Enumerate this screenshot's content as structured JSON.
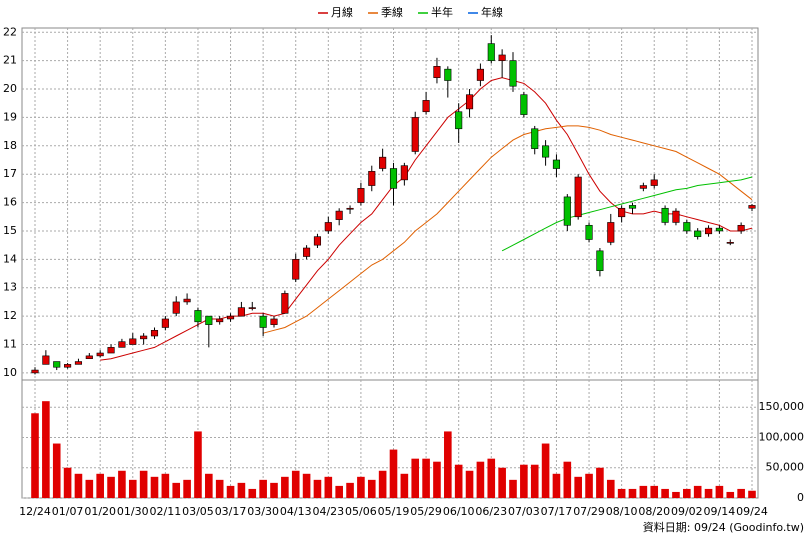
{
  "chart_data": {
    "type": "candlestick",
    "categories": [
      "12/24",
      null,
      null,
      "01/07",
      null,
      null,
      "01/20",
      null,
      null,
      "01/30",
      null,
      null,
      "02/11",
      null,
      null,
      "03/05",
      null,
      null,
      "03/17",
      null,
      null,
      "03/30",
      null,
      null,
      "04/13",
      null,
      null,
      "04/23",
      null,
      null,
      "05/06",
      null,
      null,
      "05/19",
      null,
      null,
      "05/29",
      null,
      null,
      "06/10",
      null,
      null,
      "06/23",
      null,
      null,
      "07/03",
      null,
      null,
      "07/17",
      null,
      null,
      "07/29",
      null,
      null,
      "08/10",
      null,
      null,
      "08/20",
      null,
      null,
      "09/02",
      null,
      null,
      "09/14",
      null,
      null,
      "09/24"
    ],
    "open": [
      10.0,
      10.3,
      10.4,
      10.2,
      10.3,
      10.5,
      10.6,
      10.7,
      10.9,
      11.0,
      11.2,
      11.3,
      11.6,
      12.1,
      12.5,
      12.2,
      12.0,
      11.8,
      11.9,
      12.0,
      12.3,
      12.0,
      11.7,
      12.1,
      13.3,
      14.1,
      14.5,
      15.0,
      15.4,
      15.8,
      16.0,
      16.6,
      17.2,
      17.2,
      16.8,
      17.8,
      19.2,
      20.4,
      20.7,
      19.2,
      19.3,
      20.3,
      21.6,
      21.0,
      21.0,
      19.8,
      18.6,
      18.0,
      17.5,
      16.2,
      15.5,
      15.2,
      14.3,
      14.6,
      15.5,
      15.9,
      16.5,
      16.6,
      15.8,
      15.3,
      15.3,
      15.0,
      14.9,
      15.1,
      14.6,
      15.0,
      15.8
    ],
    "high": [
      10.2,
      10.8,
      10.4,
      10.35,
      10.5,
      10.7,
      10.8,
      11.0,
      11.2,
      11.4,
      11.4,
      11.6,
      12.0,
      12.7,
      12.8,
      12.3,
      12.0,
      12.0,
      12.1,
      12.5,
      12.5,
      12.1,
      12.0,
      12.9,
      14.2,
      14.5,
      14.9,
      15.5,
      15.8,
      15.9,
      16.7,
      17.3,
      17.9,
      17.4,
      17.4,
      19.2,
      19.9,
      21.1,
      20.8,
      19.5,
      20.0,
      20.9,
      21.9,
      21.4,
      21.3,
      19.9,
      18.7,
      18.2,
      17.7,
      16.3,
      17.0,
      15.3,
      14.4,
      15.6,
      15.9,
      16.0,
      16.7,
      17.0,
      15.9,
      15.8,
      15.4,
      15.1,
      15.2,
      15.2,
      14.7,
      15.3,
      15.95
    ],
    "low": [
      9.95,
      10.3,
      10.1,
      10.15,
      10.3,
      10.5,
      10.55,
      10.7,
      10.9,
      11.0,
      11.0,
      11.2,
      11.5,
      12.0,
      12.4,
      11.6,
      10.9,
      11.7,
      11.8,
      12.0,
      12.2,
      11.3,
      11.6,
      12.1,
      13.2,
      14.0,
      14.4,
      14.9,
      15.2,
      15.6,
      15.9,
      16.4,
      17.1,
      15.9,
      16.6,
      17.7,
      19.1,
      20.2,
      19.7,
      18.1,
      19.0,
      20.1,
      20.9,
      20.4,
      19.9,
      19.0,
      17.7,
      17.3,
      16.9,
      15.0,
      15.4,
      14.6,
      13.4,
      14.5,
      15.3,
      15.6,
      16.4,
      16.5,
      15.2,
      15.2,
      14.9,
      14.7,
      14.8,
      14.9,
      14.5,
      14.9,
      15.7
    ],
    "close": [
      10.1,
      10.6,
      10.2,
      10.3,
      10.4,
      10.6,
      10.7,
      10.9,
      11.1,
      11.2,
      11.3,
      11.5,
      11.9,
      12.5,
      12.6,
      11.8,
      11.7,
      11.9,
      12.0,
      12.3,
      12.3,
      11.6,
      11.9,
      12.8,
      14.0,
      14.4,
      14.8,
      15.3,
      15.7,
      15.8,
      16.5,
      17.1,
      17.6,
      16.5,
      17.3,
      19.0,
      19.6,
      20.8,
      20.3,
      18.6,
      19.8,
      20.7,
      21.0,
      21.2,
      20.1,
      19.1,
      17.9,
      17.6,
      17.2,
      15.2,
      16.9,
      14.7,
      13.6,
      15.3,
      15.8,
      15.8,
      16.6,
      16.8,
      15.3,
      15.7,
      15.0,
      14.8,
      15.1,
      15.0,
      14.6,
      15.2,
      15.9
    ],
    "up_color": "#e00000",
    "down_color": "#00c000",
    "series": [
      {
        "name": "月線",
        "color": "#cc0000",
        "values": [
          null,
          null,
          null,
          null,
          null,
          null,
          10.45,
          10.5,
          10.6,
          10.7,
          10.8,
          10.9,
          11.1,
          11.3,
          11.5,
          11.7,
          11.9,
          11.9,
          12.0,
          12.0,
          12.1,
          12.1,
          12.0,
          12.1,
          12.6,
          13.1,
          13.6,
          14.0,
          14.5,
          14.9,
          15.3,
          15.6,
          16.1,
          16.6,
          16.9,
          17.5,
          18.0,
          18.5,
          19.0,
          19.3,
          19.6,
          20.0,
          20.3,
          20.4,
          20.3,
          20.2,
          19.9,
          19.5,
          18.9,
          18.4,
          17.7,
          17.0,
          16.4,
          16.0,
          15.7,
          15.6,
          15.6,
          15.7,
          15.6,
          15.6,
          15.5,
          15.4,
          15.3,
          15.2,
          15.0,
          15.0,
          15.1
        ]
      },
      {
        "name": "季線",
        "color": "#e06000",
        "values": [
          null,
          null,
          null,
          null,
          null,
          null,
          null,
          null,
          null,
          null,
          null,
          null,
          null,
          null,
          null,
          null,
          null,
          null,
          null,
          null,
          null,
          11.4,
          11.5,
          11.6,
          11.8,
          12.0,
          12.3,
          12.6,
          12.9,
          13.2,
          13.5,
          13.8,
          14.0,
          14.3,
          14.6,
          15.0,
          15.3,
          15.6,
          16.0,
          16.4,
          16.8,
          17.2,
          17.6,
          17.9,
          18.2,
          18.4,
          18.5,
          18.6,
          18.65,
          18.7,
          18.7,
          18.65,
          18.55,
          18.4,
          18.3,
          18.2,
          18.1,
          18.0,
          17.9,
          17.8,
          17.6,
          17.4,
          17.2,
          17.0,
          16.7,
          16.4,
          16.1
        ]
      },
      {
        "name": "半年",
        "color": "#00c000",
        "values": [
          null,
          null,
          null,
          null,
          null,
          null,
          null,
          null,
          null,
          null,
          null,
          null,
          null,
          null,
          null,
          null,
          null,
          null,
          null,
          null,
          null,
          null,
          null,
          null,
          null,
          null,
          null,
          null,
          null,
          null,
          null,
          null,
          null,
          null,
          null,
          null,
          null,
          null,
          null,
          null,
          null,
          null,
          null,
          14.3,
          14.5,
          14.7,
          14.9,
          15.1,
          15.3,
          15.45,
          15.55,
          15.65,
          15.75,
          15.85,
          15.95,
          16.05,
          16.15,
          16.25,
          16.35,
          16.45,
          16.5,
          16.6,
          16.65,
          16.7,
          16.75,
          16.8,
          16.9
        ]
      },
      {
        "name": "年線",
        "color": "#0060e0",
        "values": [
          null,
          null,
          null,
          null,
          null,
          null,
          null,
          null,
          null,
          null,
          null,
          null,
          null,
          null,
          null,
          null,
          null,
          null,
          null,
          null,
          null,
          null,
          null,
          null,
          null,
          null,
          null,
          null,
          null,
          null,
          null,
          null,
          null,
          null,
          null,
          null,
          null,
          null,
          null,
          null,
          null,
          null,
          null,
          null,
          null,
          null,
          null,
          null,
          null,
          null,
          null,
          null,
          null,
          null,
          null,
          null,
          null,
          null,
          null,
          null,
          null,
          null,
          null,
          null,
          null,
          null,
          null
        ]
      }
    ],
    "ylim": [
      9.75,
      22.15
    ],
    "yticks": [
      10,
      11,
      12,
      13,
      14,
      15,
      16,
      17,
      18,
      19,
      20,
      21,
      22
    ],
    "grid": true,
    "volume": {
      "color": "#e00000",
      "values": [
        140000,
        160000,
        90000,
        50000,
        40000,
        30000,
        40000,
        35000,
        45000,
        30000,
        45000,
        35000,
        40000,
        25000,
        30000,
        110000,
        40000,
        30000,
        20000,
        25000,
        15000,
        30000,
        25000,
        35000,
        45000,
        40000,
        30000,
        35000,
        20000,
        25000,
        35000,
        30000,
        45000,
        80000,
        40000,
        65000,
        65000,
        60000,
        110000,
        55000,
        45000,
        60000,
        65000,
        50000,
        30000,
        55000,
        55000,
        90000,
        40000,
        60000,
        35000,
        40000,
        50000,
        30000,
        15000,
        15000,
        20000,
        20000,
        15000,
        10000,
        15000,
        20000,
        15000,
        20000,
        10000,
        15000,
        12000
      ],
      "ylim": [
        0,
        195000
      ],
      "yticks": [
        0,
        {
          "value": 50000,
          "label": "50,000"
        },
        {
          "value": 100000,
          "label": "100,000"
        },
        {
          "value": 150000,
          "label": "150,000"
        }
      ]
    },
    "footer": "資料日期: 09/24 (Goodinfo.tw)"
  }
}
